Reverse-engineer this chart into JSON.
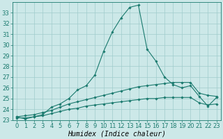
{
  "xlabel": "Humidex (Indice chaleur)",
  "x_values": [
    0,
    1,
    2,
    3,
    4,
    5,
    6,
    7,
    8,
    9,
    10,
    11,
    12,
    13,
    14,
    15,
    16,
    17,
    18,
    19,
    20,
    21,
    22,
    23
  ],
  "line1": [
    23.3,
    23.1,
    23.3,
    23.5,
    24.2,
    24.5,
    25.0,
    25.8,
    26.2,
    27.2,
    29.4,
    31.2,
    32.5,
    33.5,
    33.7,
    29.6,
    28.5,
    27.0,
    26.3,
    26.0,
    26.2,
    25.2,
    24.3,
    25.1
  ],
  "line2": [
    23.3,
    23.4,
    23.5,
    23.7,
    23.9,
    24.2,
    24.5,
    24.7,
    24.9,
    25.1,
    25.3,
    25.5,
    25.7,
    25.9,
    26.1,
    26.2,
    26.3,
    26.4,
    26.5,
    26.5,
    26.5,
    25.5,
    25.3,
    25.2
  ],
  "line3": [
    23.2,
    23.2,
    23.3,
    23.4,
    23.6,
    23.8,
    24.0,
    24.1,
    24.3,
    24.4,
    24.5,
    24.6,
    24.7,
    24.8,
    24.9,
    25.0,
    25.0,
    25.1,
    25.1,
    25.1,
    25.1,
    24.6,
    24.4,
    24.5
  ],
  "line_color": "#1a7a6e",
  "bg_color": "#cce8e8",
  "grid_color": "#a0cccc",
  "ylim_min": 23,
  "ylim_max": 34,
  "yticks": [
    23,
    24,
    25,
    26,
    27,
    28,
    29,
    30,
    31,
    32,
    33
  ],
  "tick_fontsize": 6,
  "label_fontsize": 7,
  "marker_size": 1.8,
  "linewidth": 0.8
}
